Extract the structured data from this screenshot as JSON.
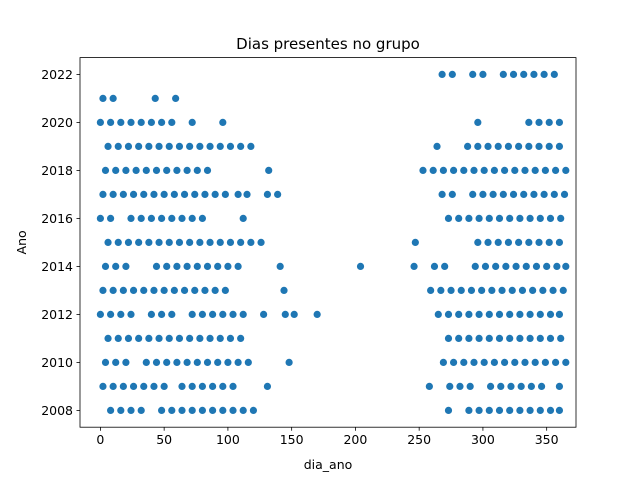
{
  "chart_data": {
    "type": "scatter",
    "title": "Dias presentes no grupo",
    "xlabel": "dia_ano",
    "ylabel": "Ano",
    "xlim": [
      -16,
      373
    ],
    "ylim": [
      2007.3,
      2022.7
    ],
    "xticks": [
      0,
      50,
      100,
      150,
      200,
      250,
      300,
      350
    ],
    "yticks": [
      2008,
      2010,
      2012,
      2014,
      2016,
      2018,
      2020,
      2022
    ],
    "grid": false,
    "legend": "none",
    "marker_color": "#1f77b4",
    "points": [
      {
        "year": 2008,
        "days": [
          8,
          16,
          24,
          32,
          48,
          56,
          64,
          72,
          80,
          88,
          96,
          104,
          112,
          120,
          273,
          289,
          297,
          305,
          313,
          321,
          329,
          337,
          345,
          353,
          360
        ]
      },
      {
        "year": 2009,
        "days": [
          2,
          10,
          18,
          26,
          34,
          42,
          50,
          64,
          72,
          80,
          88,
          96,
          104,
          131,
          258,
          274,
          282,
          290,
          306,
          314,
          322,
          330,
          338,
          346,
          360
        ]
      },
      {
        "year": 2010,
        "days": [
          4,
          12,
          20,
          36,
          44,
          52,
          60,
          68,
          76,
          84,
          92,
          100,
          108,
          116,
          148,
          269,
          277,
          285,
          293,
          301,
          309,
          317,
          325,
          333,
          341,
          349,
          357,
          365
        ]
      },
      {
        "year": 2011,
        "days": [
          6,
          14,
          22,
          30,
          38,
          46,
          54,
          62,
          70,
          78,
          86,
          94,
          102,
          110,
          273,
          281,
          289,
          297,
          305,
          313,
          321,
          329,
          337,
          345,
          353,
          361
        ]
      },
      {
        "year": 2012,
        "days": [
          0,
          8,
          16,
          24,
          40,
          48,
          56,
          72,
          80,
          88,
          96,
          104,
          112,
          128,
          145,
          152,
          170,
          265,
          273,
          281,
          289,
          297,
          305,
          313,
          321,
          329,
          337,
          345,
          353,
          360
        ]
      },
      {
        "year": 2013,
        "days": [
          2,
          10,
          18,
          26,
          34,
          42,
          50,
          58,
          66,
          74,
          82,
          90,
          98,
          144,
          259,
          267,
          275,
          283,
          291,
          299,
          307,
          315,
          323,
          331,
          339,
          347,
          355,
          363
        ]
      },
      {
        "year": 2014,
        "days": [
          4,
          12,
          20,
          44,
          52,
          60,
          68,
          76,
          84,
          92,
          100,
          108,
          141,
          204,
          246,
          262,
          270,
          294,
          302,
          310,
          318,
          326,
          334,
          342,
          350,
          358,
          365
        ]
      },
      {
        "year": 2015,
        "days": [
          6,
          14,
          22,
          30,
          38,
          46,
          54,
          62,
          70,
          78,
          86,
          94,
          102,
          110,
          118,
          126,
          247,
          296,
          304,
          312,
          320,
          328,
          336,
          344,
          352,
          360
        ]
      },
      {
        "year": 2016,
        "days": [
          0,
          8,
          24,
          32,
          40,
          48,
          56,
          64,
          72,
          80,
          112,
          273,
          281,
          289,
          297,
          305,
          313,
          321,
          329,
          337,
          345,
          353,
          361
        ]
      },
      {
        "year": 2017,
        "days": [
          2,
          10,
          18,
          26,
          34,
          42,
          50,
          58,
          66,
          74,
          82,
          90,
          98,
          108,
          115,
          131,
          139,
          268,
          276,
          292,
          300,
          308,
          316,
          324,
          332,
          340,
          348,
          356,
          364
        ]
      },
      {
        "year": 2018,
        "days": [
          4,
          12,
          20,
          28,
          36,
          44,
          52,
          60,
          68,
          76,
          84,
          132,
          253,
          261,
          269,
          277,
          285,
          293,
          301,
          309,
          317,
          325,
          333,
          341,
          349,
          357,
          365
        ]
      },
      {
        "year": 2019,
        "days": [
          6,
          14,
          22,
          30,
          38,
          46,
          54,
          62,
          70,
          78,
          86,
          94,
          102,
          110,
          118,
          264,
          288,
          296,
          304,
          312,
          320,
          328,
          336,
          344,
          352,
          360
        ]
      },
      {
        "year": 2020,
        "days": [
          0,
          8,
          16,
          24,
          32,
          40,
          48,
          56,
          72,
          96,
          296,
          336,
          344,
          352,
          360
        ]
      },
      {
        "year": 2021,
        "days": [
          2,
          10,
          43,
          59
        ]
      },
      {
        "year": 2022,
        "days": [
          268,
          276,
          292,
          300,
          316,
          324,
          332,
          340,
          348,
          356
        ]
      }
    ]
  }
}
